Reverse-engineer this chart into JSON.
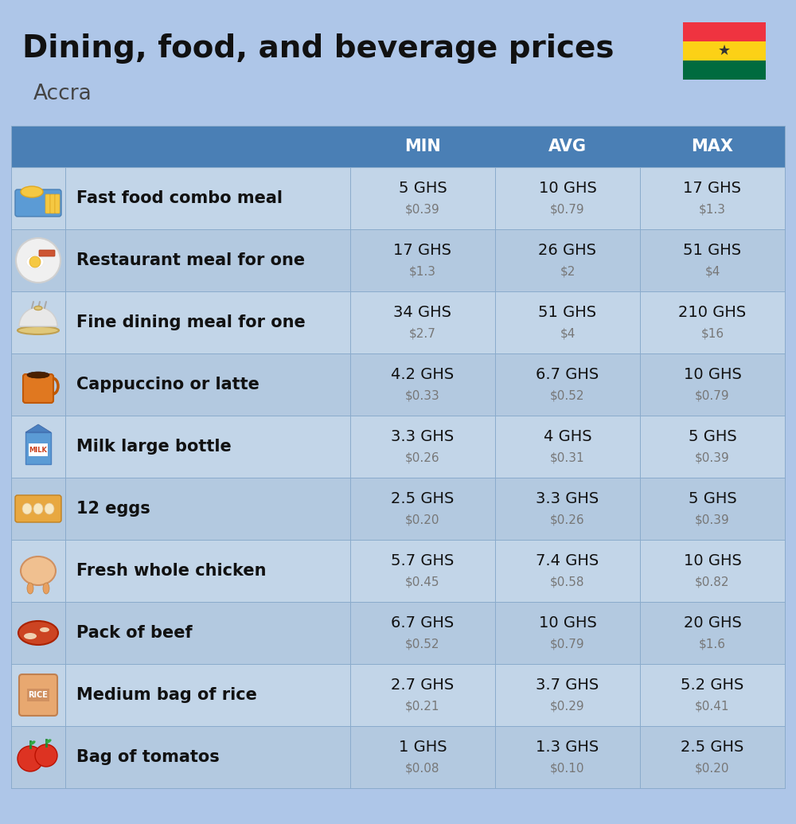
{
  "title": "Dining, food, and beverage prices",
  "subtitle": "Accra",
  "bg_color": "#aec6e8",
  "header_bg": "#4a7fb5",
  "header_text_color": "#ffffff",
  "row_colors": [
    "#c2d5e8",
    "#b3c9e0"
  ],
  "columns": [
    "MIN",
    "AVG",
    "MAX"
  ],
  "rows": [
    {
      "label": "Fast food combo meal",
      "min_ghs": "5 GHS",
      "min_usd": "$0.39",
      "avg_ghs": "10 GHS",
      "avg_usd": "$0.79",
      "max_ghs": "17 GHS",
      "max_usd": "$1.3"
    },
    {
      "label": "Restaurant meal for one",
      "min_ghs": "17 GHS",
      "min_usd": "$1.3",
      "avg_ghs": "26 GHS",
      "avg_usd": "$2",
      "max_ghs": "51 GHS",
      "max_usd": "$4"
    },
    {
      "label": "Fine dining meal for one",
      "min_ghs": "34 GHS",
      "min_usd": "$2.7",
      "avg_ghs": "51 GHS",
      "avg_usd": "$4",
      "max_ghs": "210 GHS",
      "max_usd": "$16"
    },
    {
      "label": "Cappuccino or latte",
      "min_ghs": "4.2 GHS",
      "min_usd": "$0.33",
      "avg_ghs": "6.7 GHS",
      "avg_usd": "$0.52",
      "max_ghs": "10 GHS",
      "max_usd": "$0.79"
    },
    {
      "label": "Milk large bottle",
      "min_ghs": "3.3 GHS",
      "min_usd": "$0.26",
      "avg_ghs": "4 GHS",
      "avg_usd": "$0.31",
      "max_ghs": "5 GHS",
      "max_usd": "$0.39"
    },
    {
      "label": "12 eggs",
      "min_ghs": "2.5 GHS",
      "min_usd": "$0.20",
      "avg_ghs": "3.3 GHS",
      "avg_usd": "$0.26",
      "max_ghs": "5 GHS",
      "max_usd": "$0.39"
    },
    {
      "label": "Fresh whole chicken",
      "min_ghs": "5.7 GHS",
      "min_usd": "$0.45",
      "avg_ghs": "7.4 GHS",
      "avg_usd": "$0.58",
      "max_ghs": "10 GHS",
      "max_usd": "$0.82"
    },
    {
      "label": "Pack of beef",
      "min_ghs": "6.7 GHS",
      "min_usd": "$0.52",
      "avg_ghs": "10 GHS",
      "avg_usd": "$0.79",
      "max_ghs": "20 GHS",
      "max_usd": "$1.6"
    },
    {
      "label": "Medium bag of rice",
      "min_ghs": "2.7 GHS",
      "min_usd": "$0.21",
      "avg_ghs": "3.7 GHS",
      "avg_usd": "$0.29",
      "max_ghs": "5.2 GHS",
      "max_usd": "$0.41"
    },
    {
      "label": "Bag of tomatos",
      "min_ghs": "1 GHS",
      "min_usd": "$0.08",
      "avg_ghs": "1.3 GHS",
      "avg_usd": "$0.10",
      "max_ghs": "2.5 GHS",
      "max_usd": "$0.20"
    }
  ],
  "flag_colors": [
    "#ef3340",
    "#fcd116",
    "#006b3f"
  ],
  "flag_star_color": "#333333",
  "icon_colors": [
    [
      "#f5a623",
      "#e8956d"
    ],
    [
      "#f0c070",
      "#e07050"
    ],
    [
      "#d0d0d0",
      "#b0a090"
    ],
    [
      "#e07020",
      "#c05010"
    ],
    [
      "#60aadd",
      "#ffffff"
    ],
    [
      "#f0c060",
      "#e0a040"
    ],
    [
      "#f0c090",
      "#e09060"
    ],
    [
      "#cc4444",
      "#aa2222"
    ],
    [
      "#e09060",
      "#c07040"
    ],
    [
      "#dd4444",
      "#cc2222"
    ]
  ]
}
